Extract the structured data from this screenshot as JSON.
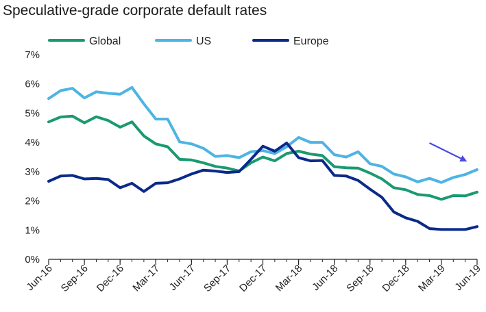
{
  "chart_data": {
    "type": "line",
    "title": "Speculative-grade corporate default rates",
    "xlabel": "",
    "ylabel": "",
    "ylim": [
      0,
      7
    ],
    "yticks": [
      "0%",
      "1%",
      "2%",
      "3%",
      "4%",
      "5%",
      "6%",
      "7%"
    ],
    "xticks": [
      "Jun-16",
      "Sep-16",
      "Dec-16",
      "Mar-17",
      "Jun-17",
      "Sep-17",
      "Dec-17",
      "Mar-18",
      "Jun-18",
      "Sep-18",
      "Dec-18",
      "Mar-19",
      "Jun-19"
    ],
    "x": [
      "Jun-16",
      "Jul-16",
      "Aug-16",
      "Sep-16",
      "Oct-16",
      "Nov-16",
      "Dec-16",
      "Jan-17",
      "Feb-17",
      "Mar-17",
      "Apr-17",
      "May-17",
      "Jun-17",
      "Jul-17",
      "Aug-17",
      "Sep-17",
      "Oct-17",
      "Nov-17",
      "Dec-17",
      "Jan-18",
      "Feb-18",
      "Mar-18",
      "Apr-18",
      "May-18",
      "Jun-18",
      "Jul-18",
      "Aug-18",
      "Sep-18",
      "Oct-18",
      "Nov-18",
      "Dec-18",
      "Jan-19",
      "Feb-19",
      "Mar-19",
      "Apr-19",
      "May-19",
      "Jun-19"
    ],
    "grid": false,
    "legend": "top-left",
    "series": [
      {
        "name": "Global",
        "color": "#1a9a70",
        "values": [
          4.7,
          4.87,
          4.9,
          4.67,
          4.88,
          4.75,
          4.52,
          4.7,
          4.22,
          3.95,
          3.85,
          3.42,
          3.4,
          3.3,
          3.18,
          3.12,
          3.02,
          3.3,
          3.5,
          3.37,
          3.62,
          3.7,
          3.6,
          3.55,
          3.17,
          3.13,
          3.12,
          2.95,
          2.75,
          2.45,
          2.38,
          2.22,
          2.18,
          2.05,
          2.18,
          2.17,
          2.3
        ]
      },
      {
        "name": "US",
        "color": "#4db4e4",
        "values": [
          5.5,
          5.77,
          5.85,
          5.52,
          5.73,
          5.68,
          5.65,
          5.88,
          5.32,
          4.8,
          4.8,
          4.02,
          3.95,
          3.8,
          3.52,
          3.55,
          3.48,
          3.68,
          3.72,
          3.62,
          3.85,
          4.17,
          4.0,
          4.0,
          3.58,
          3.5,
          3.68,
          3.27,
          3.18,
          2.92,
          2.82,
          2.65,
          2.77,
          2.63,
          2.8,
          2.9,
          3.07
        ]
      },
      {
        "name": "Europe",
        "color": "#0a2a8a",
        "values": [
          2.67,
          2.85,
          2.87,
          2.75,
          2.77,
          2.73,
          2.45,
          2.6,
          2.32,
          2.6,
          2.62,
          2.75,
          2.92,
          3.05,
          3.02,
          2.97,
          3.0,
          3.42,
          3.87,
          3.7,
          3.98,
          3.48,
          3.37,
          3.38,
          2.87,
          2.85,
          2.7,
          2.4,
          2.12,
          1.62,
          1.42,
          1.3,
          1.05,
          1.02,
          1.02,
          1.02,
          1.12
        ]
      }
    ],
    "annotation": {
      "type": "arrow",
      "color": "#4a4adf",
      "from": {
        "x": "Feb-19",
        "y": 3.98
      },
      "to": {
        "x": "May-19",
        "y": 3.38
      }
    }
  }
}
